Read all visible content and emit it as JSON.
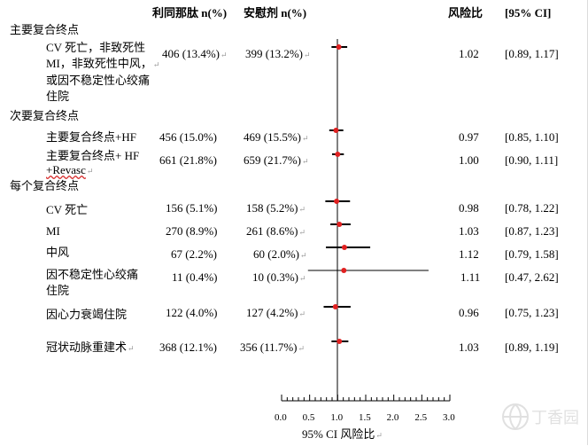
{
  "header": {
    "drug": "利同那肽 n(%)",
    "placebo": "安慰剂 n(%)",
    "hr": "风险比",
    "ci": "[95% CI]"
  },
  "sections": [
    {
      "label": "主要复合终点"
    },
    {
      "label": "次要复合终点"
    },
    {
      "label": "每个复合终点"
    }
  ],
  "rows": [
    {
      "lines": [
        "CV 死亡，非致死性",
        "MI，非致死性中风，",
        "或因不稳定性心绞痛",
        "住院"
      ],
      "drug": "406 (13.4%)",
      "placebo": "399 (13.2%)",
      "hr_text": "1.02",
      "ci_text": "[0.89, 1.17]"
    },
    {
      "lines": [
        "主要复合终点+HF"
      ],
      "drug": "456 (15.0%)",
      "placebo": "469 (15.5%)",
      "hr_text": "0.97",
      "ci_text": "[0.85, 1.10]"
    },
    {
      "lines": [
        "主要复合终点+ HF",
        "+Revasc"
      ],
      "drug": "661 (21.8%)",
      "placebo": "659 (21.7%)",
      "hr_text": "1.00",
      "ci_text": "[0.90, 1.11]"
    },
    {
      "lines": [
        "CV 死亡"
      ],
      "drug": "156 (5.1%)",
      "placebo": "158 (5.2%)",
      "hr_text": "0.98",
      "ci_text": "[0.78, 1.22]"
    },
    {
      "lines": [
        "MI"
      ],
      "drug": "270 (8.9%)",
      "placebo": "261 (8.6%)",
      "hr_text": "1.03",
      "ci_text": "[0.87, 1.23]"
    },
    {
      "lines": [
        "中风"
      ],
      "drug": "67 (2.2%)",
      "placebo": "60 (2.0%)",
      "hr_text": "1.12",
      "ci_text": "[0.79, 1.58]"
    },
    {
      "lines": [
        "因不稳定性心绞痛",
        "住院"
      ],
      "drug": "11 (0.4%)",
      "placebo": "10 (0.3%)",
      "hr_text": "1.11",
      "ci_text": "[0.47, 2.62]"
    },
    {
      "lines": [
        "因心力衰竭住院"
      ],
      "drug": "122 (4.0%)",
      "placebo": "127 (4.2%)",
      "hr_text": "0.96",
      "ci_text": "[0.75, 1.23]"
    },
    {
      "lines": [
        "冠状动脉重建术"
      ],
      "drug": "368 (12.1%)",
      "placebo": "356 (11.7%)",
      "hr_text": "1.03",
      "ci_text": "[0.89, 1.19]"
    }
  ],
  "axis": {
    "label": "95% CI 风险比",
    "ticks": [
      "0.0",
      "0.5",
      "1.0",
      "1.5",
      "2.0",
      "2.5",
      "3.0"
    ]
  },
  "colors": {
    "point": "#e02020",
    "line": "#000000"
  },
  "watermark": {
    "text": "丁香园"
  },
  "chart_data": {
    "type": "forest",
    "title": "",
    "xlabel": "95% CI 风险比",
    "xlim": [
      0,
      3
    ],
    "reference_line": 1,
    "series": [
      {
        "name": "主要复合终点",
        "hr": 1.02,
        "ci": [
          0.89,
          1.17
        ]
      },
      {
        "name": "主要复合终点+HF",
        "hr": 0.97,
        "ci": [
          0.85,
          1.1
        ]
      },
      {
        "name": "主要复合终点+ HF +Revasc",
        "hr": 1.0,
        "ci": [
          0.9,
          1.11
        ]
      },
      {
        "name": "CV 死亡",
        "hr": 0.98,
        "ci": [
          0.78,
          1.22
        ]
      },
      {
        "name": "MI",
        "hr": 1.03,
        "ci": [
          0.87,
          1.23
        ]
      },
      {
        "name": "中风",
        "hr": 1.12,
        "ci": [
          0.79,
          1.58
        ]
      },
      {
        "name": "因不稳定性心绞痛住院",
        "hr": 1.11,
        "ci": [
          0.47,
          2.62
        ]
      },
      {
        "name": "因心力衰竭住院",
        "hr": 0.96,
        "ci": [
          0.75,
          1.23
        ]
      },
      {
        "name": "冠状动脉重建术",
        "hr": 1.03,
        "ci": [
          0.89,
          1.19
        ]
      }
    ]
  }
}
